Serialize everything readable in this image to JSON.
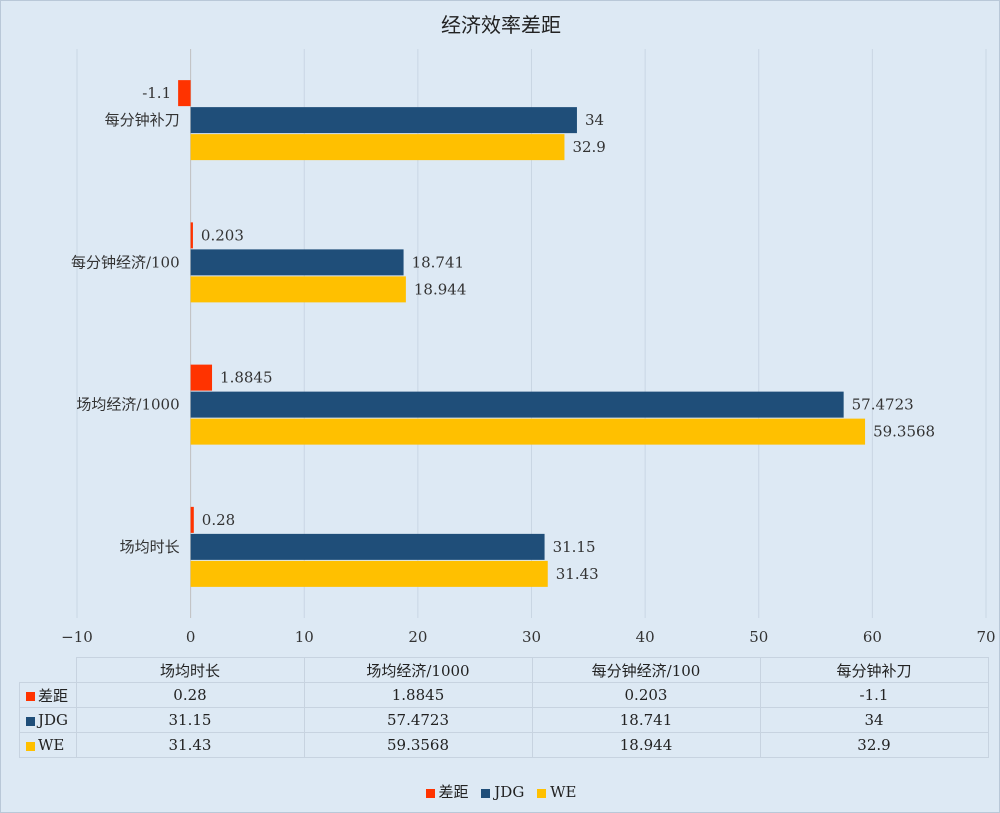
{
  "chart_data": {
    "type": "bar",
    "orientation": "horizontal",
    "title": "经济效率差距",
    "categories": [
      "每分钟补刀",
      "每分钟经济/100",
      "场均经济/1000",
      "场均时长"
    ],
    "series": [
      {
        "name": "差距",
        "color": "#ff3300",
        "values": [
          -1.1,
          0.203,
          1.8845,
          0.28
        ]
      },
      {
        "name": "JDG",
        "color": "#1f4e79",
        "values": [
          34,
          18.741,
          57.4723,
          31.15
        ]
      },
      {
        "name": "WE",
        "color": "#ffc000",
        "values": [
          32.9,
          18.944,
          59.3568,
          31.43
        ]
      }
    ],
    "data_labels": {
      "差距": [
        "-1.1",
        "0.203",
        "1.8845",
        "0.28"
      ],
      "JDG": [
        "34",
        "18.741",
        "57.4723",
        "31.15"
      ],
      "WE": [
        "32.9",
        "18.944",
        "59.3568",
        "31.43"
      ]
    },
    "xlim": [
      -10,
      70
    ],
    "xticks": [
      -10,
      0,
      10,
      20,
      30,
      40,
      50,
      60,
      70
    ],
    "grid": true,
    "legend": "bottom",
    "data_table": {
      "columns": [
        "场均时长",
        "场均经济/1000",
        "每分钟经济/100",
        "每分钟补刀"
      ],
      "rows": [
        {
          "label": "差距",
          "color": "#ff3300",
          "cells": [
            "0.28",
            "1.8845",
            "0.203",
            "-1.1"
          ]
        },
        {
          "label": "JDG",
          "color": "#1f4e79",
          "cells": [
            "31.15",
            "57.4723",
            "18.741",
            "34"
          ]
        },
        {
          "label": "WE",
          "color": "#ffc000",
          "cells": [
            "31.43",
            "59.3568",
            "18.944",
            "32.9"
          ]
        }
      ]
    }
  }
}
